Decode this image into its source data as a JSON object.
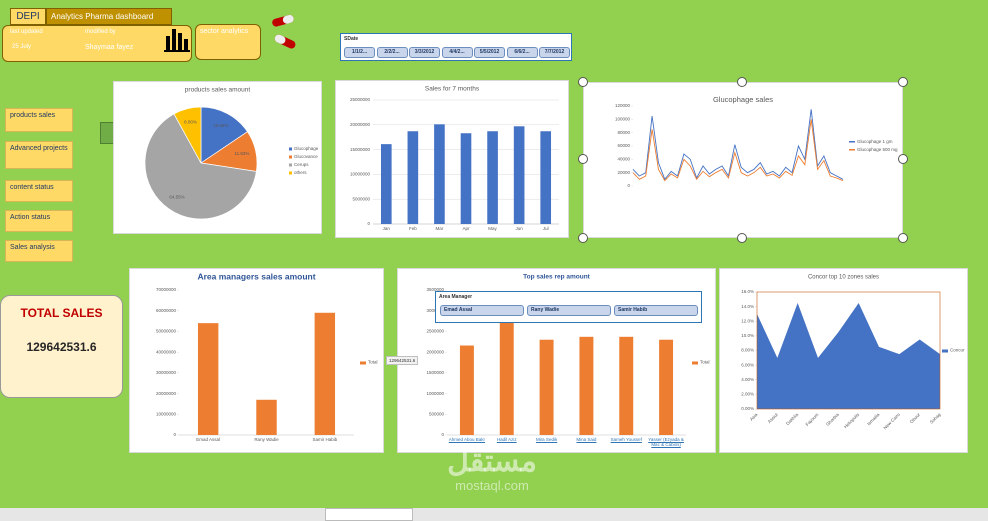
{
  "header": {
    "badge": "DEPI",
    "title": "Analytics Pharma dashboard",
    "last_updated_label": "last updated",
    "last_updated": "25 July",
    "modified_by_label": "modified by",
    "modified_by": "Shaymaa fayez",
    "sector": "sector analytics"
  },
  "date_slicer": {
    "title": "SDate",
    "items": [
      "1/1/2...",
      "2/2/2...",
      "3/3/2012",
      "4/4/2...",
      "5/5/2012",
      "6/6/2...",
      "7/7/2012"
    ]
  },
  "nav": [
    "products sales",
    "Advanced projects",
    "content status",
    "Action status",
    "Sales analysis"
  ],
  "total": {
    "label": "TOTAL SALES",
    "value": 129642531.6
  },
  "manager_slicer": {
    "title": "Area Manager",
    "items": [
      "Emad Assal",
      "Rany Wadie",
      "Samir Habib"
    ]
  },
  "watermark": {
    "arabic": "مستقل",
    "latin": "mostaql.com"
  },
  "chart_data": [
    {
      "type": "pie",
      "title": "products sales amount",
      "categories": [
        "Glucophage",
        "Glucovance",
        "Cerups",
        "others"
      ],
      "values": [
        15.56,
        11.83,
        64.55,
        8.0
      ],
      "value_labels": [
        "15.56%",
        "11.83%",
        "64.55%",
        "8.00%"
      ],
      "colors": [
        "#4472c4",
        "#ed7d31",
        "#a5a5a5",
        "#ffc000"
      ]
    },
    {
      "type": "bar",
      "title": "Sales for 7 months",
      "categories": [
        "Jan",
        "Feb",
        "Mar",
        "Apr",
        "May",
        "Jun",
        "Jul"
      ],
      "values": [
        16100000,
        18700000,
        20100000,
        18300000,
        18700000,
        19700000,
        18700000
      ],
      "color": "#4472c4",
      "ylim": [
        0,
        25000000
      ],
      "yticks": [
        0,
        5000000,
        10000000,
        15000000,
        20000000,
        25000000
      ],
      "grid": true
    },
    {
      "type": "line",
      "title": "Glucophage sales",
      "categories": [
        null,
        null,
        null,
        null,
        null,
        null,
        null,
        null,
        null,
        null,
        null,
        null,
        null,
        null,
        null,
        null,
        null,
        null,
        null,
        null,
        null,
        null,
        null,
        null,
        null,
        null,
        null,
        null,
        null,
        null,
        null,
        null,
        null,
        null
      ],
      "series": [
        {
          "name": "Glucophage 1 gm",
          "color": "#4472c4",
          "values": [
            25000,
            15000,
            20000,
            105000,
            35000,
            10000,
            22000,
            15000,
            48000,
            40000,
            12000,
            30000,
            18000,
            25000,
            30000,
            15000,
            62000,
            28000,
            20000,
            25000,
            35000,
            18000,
            22000,
            15000,
            28000,
            20000,
            60000,
            40000,
            115000,
            30000,
            45000,
            20000,
            15000,
            10000
          ]
        },
        {
          "name": "Glucophage 500 mg",
          "color": "#ed7d31",
          "values": [
            20000,
            10000,
            15000,
            85000,
            25000,
            8000,
            18000,
            12000,
            40000,
            30000,
            10000,
            22000,
            14000,
            20000,
            25000,
            12000,
            50000,
            20000,
            15000,
            20000,
            28000,
            15000,
            18000,
            12000,
            22000,
            16000,
            45000,
            32000,
            100000,
            25000,
            38000,
            15000,
            12000,
            8000
          ]
        }
      ],
      "ylim": [
        0,
        120000
      ],
      "yticks": [
        0,
        20000,
        40000,
        60000,
        80000,
        100000,
        120000
      ],
      "grid": false
    },
    {
      "type": "bar",
      "title": "Area managers sales amount",
      "categories": [
        "Emad Assal",
        "Rany Wadie",
        "Samir Habib"
      ],
      "series": [
        {
          "name": "Total",
          "color": "#ed7d31",
          "values": [
            54000000,
            17000000,
            59000000
          ]
        }
      ],
      "ylim": [
        0,
        70000000
      ],
      "yticks": [
        0,
        10000000,
        20000000,
        30000000,
        40000000,
        50000000,
        60000000,
        70000000
      ],
      "grid": false
    },
    {
      "type": "bar",
      "title": "Top sales rep amount",
      "categories": [
        "Ahmed Abou Bakr",
        "Hadil Aziz",
        "Mira Sedik",
        "Mina Said",
        "Sameh Youssef",
        "Yasser (Ezyada & Mac & Cabins)"
      ],
      "series": [
        {
          "name": "Total",
          "color": "#ed7d31",
          "values": [
            2160000,
            3160000,
            2300000,
            2370000,
            2370000,
            2300000
          ]
        }
      ],
      "ylim": [
        0,
        3500000
      ],
      "yticks": [
        0,
        500000,
        1000000,
        1500000,
        2000000,
        2500000,
        3000000,
        3500000
      ],
      "grid": false
    },
    {
      "type": "area",
      "title": "Concor top 10 zones sales",
      "categories": [
        "Asia",
        "Assiut",
        "Dakhlia",
        "Fayoum",
        "Gharbia",
        "Heliopolis",
        "Ismailia",
        "New Cairo",
        "Obour",
        "Sohag"
      ],
      "series": [
        {
          "name": "Concor",
          "color": "#4472c4",
          "values": [
            13.0,
            7.0,
            14.5,
            7.0,
            10.5,
            14.5,
            8.5,
            7.5,
            9.5,
            7.5
          ]
        }
      ],
      "ylim": [
        0,
        16
      ],
      "yticks": [
        {
          "value": 0,
          "label": "0.00%"
        },
        {
          "value": 2,
          "label": "2.00%"
        },
        {
          "value": 4,
          "label": "4.00%"
        },
        {
          "value": 6,
          "label": "6.00%"
        },
        {
          "value": 8,
          "label": "8.00%"
        },
        {
          "value": 10,
          "label": "10.0%"
        },
        {
          "value": 12,
          "label": "12.0%"
        },
        {
          "value": 14,
          "label": "14.0%"
        },
        {
          "value": 16,
          "label": "16.0%"
        }
      ],
      "grid": false
    }
  ]
}
